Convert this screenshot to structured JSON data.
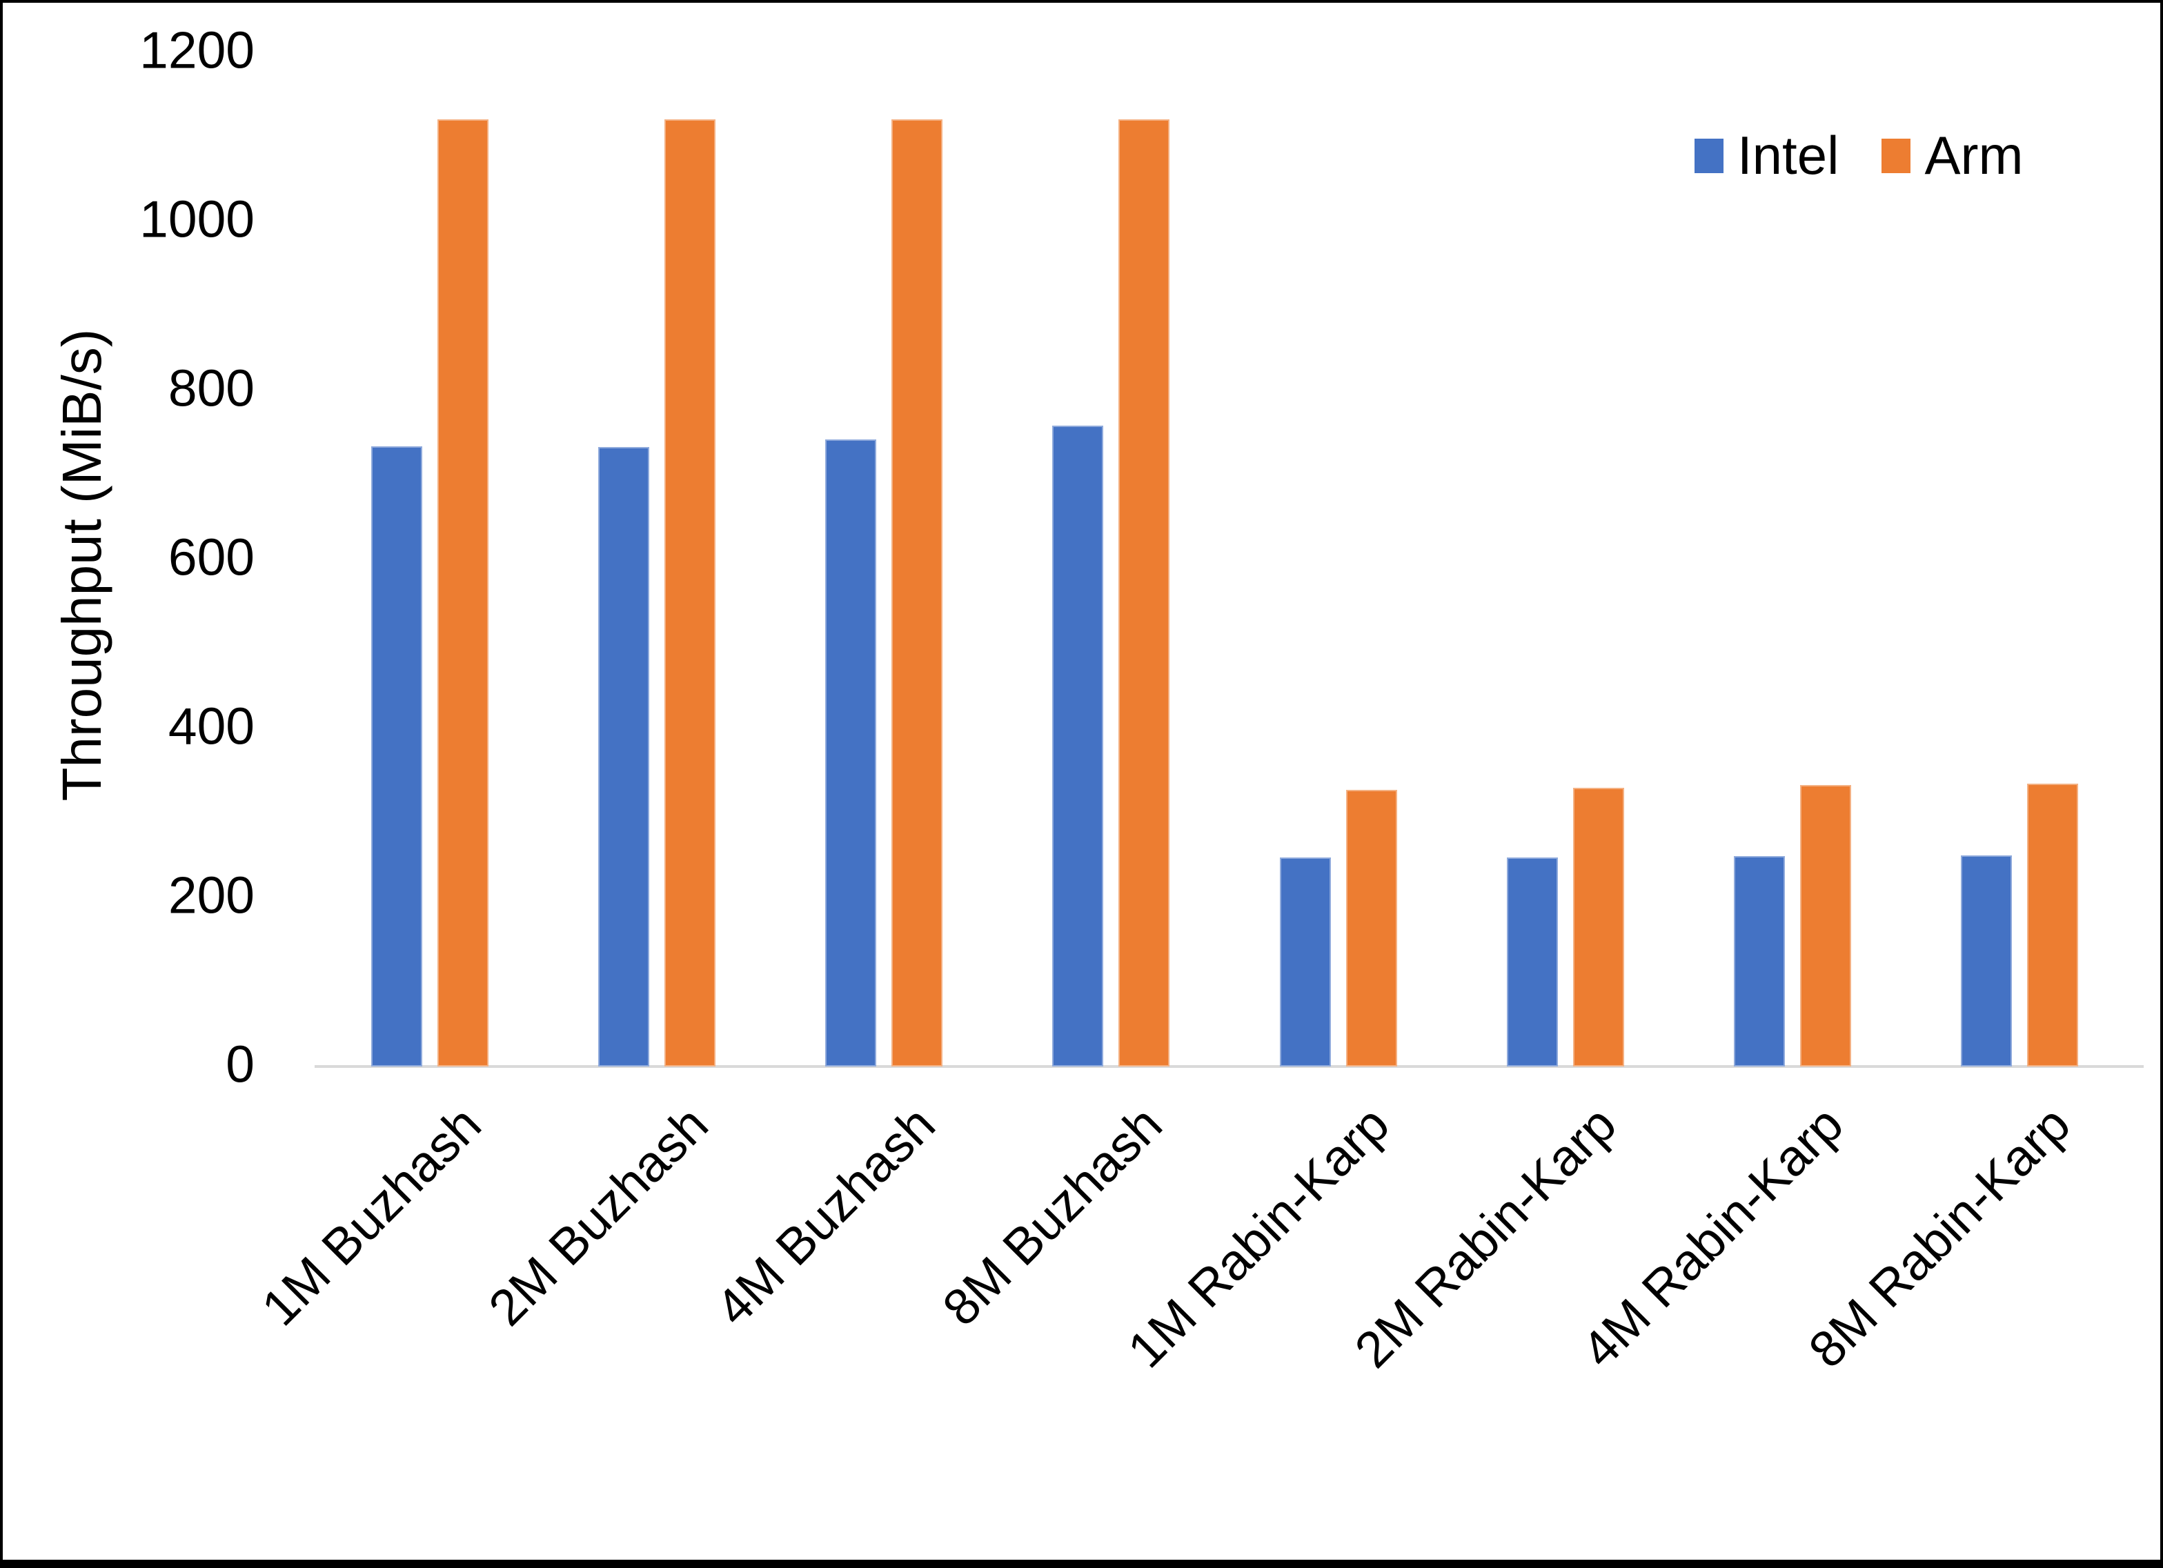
{
  "chart_data": {
    "type": "bar",
    "title": "",
    "xlabel": "",
    "ylabel": "Throughput (MiB/s)",
    "ylim": [
      0,
      1200
    ],
    "yticks": [
      0,
      200,
      400,
      600,
      800,
      1000,
      1200
    ],
    "grid": false,
    "legend_position": "top-right",
    "categories": [
      "1M Buzhash",
      "2M Buzhash",
      "4M Buzhash",
      "8M Buzhash",
      "1M Rabin-Karp",
      "2M Rabin-Karp",
      "4M Rabin-Karp",
      "8M Rabin-Karp"
    ],
    "series": [
      {
        "name": "Intel",
        "color": "#4472C4",
        "edge_color": "#8FAADC",
        "values": [
          734,
          733,
          742,
          758,
          247,
          247,
          249,
          250
        ]
      },
      {
        "name": "Arm",
        "color": "#ED7D31",
        "edge_color": "#F4B183",
        "values": [
          1121,
          1121,
          1121,
          1121,
          327,
          330,
          333,
          335
        ]
      }
    ]
  },
  "colors": {
    "background": "#FFFFFF",
    "axis_line": "#D9D9D9",
    "text": "#000000",
    "frame": "#000000"
  }
}
